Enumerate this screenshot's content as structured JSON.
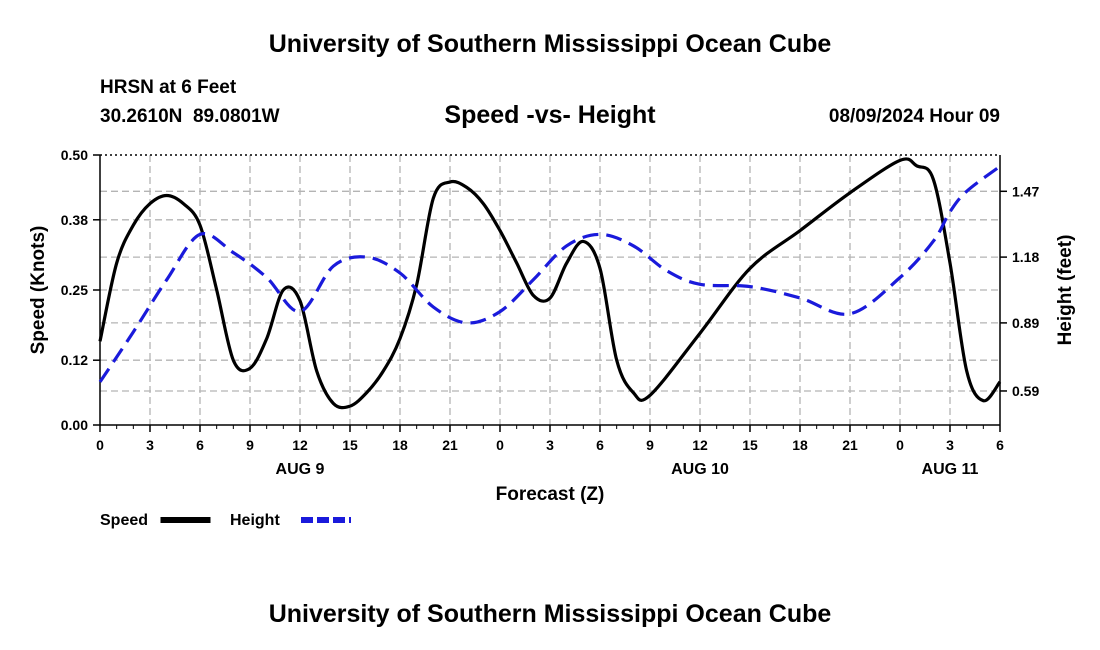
{
  "header": {
    "title": "University of Southern Mississippi Ocean Cube",
    "station": "HRSN at 6 Feet",
    "coords": "30.2610N  89.0801W",
    "timestamp": "08/09/2024 Hour 09"
  },
  "footer": {
    "title": "University of Southern Mississippi Ocean Cube"
  },
  "colors": {
    "speed": "#000000",
    "height": "#1a1adb",
    "grid": "#b4b4b4"
  },
  "chart_data": {
    "type": "line",
    "title": "Speed -vs- Height",
    "xlabel": "Forecast (Z)",
    "ylabel": "Speed (Knots)",
    "ylabel_right": "Height (feet)",
    "grid": true,
    "xlim": [
      0,
      54
    ],
    "ylim": [
      0,
      0.5
    ],
    "ylim_right": [
      0.44,
      1.63
    ],
    "x_ticks": [
      0,
      3,
      6,
      9,
      12,
      15,
      18,
      21,
      24,
      27,
      30,
      33,
      36,
      39,
      42,
      45,
      48,
      51,
      54
    ],
    "x_tick_labels": [
      "0",
      "3",
      "6",
      "9",
      "12",
      "15",
      "18",
      "21",
      "0",
      "3",
      "6",
      "9",
      "12",
      "15",
      "18",
      "21",
      "0",
      "3",
      "6"
    ],
    "day_labels": [
      {
        "x": 12,
        "label": "AUG 9"
      },
      {
        "x": 36,
        "label": "AUG 10"
      },
      {
        "x": 51,
        "label": "AUG 11"
      }
    ],
    "y_ticks": [
      0.0,
      0.12,
      0.25,
      0.38,
      0.5
    ],
    "y_tick_labels": [
      "0.00",
      "0.12",
      "0.25",
      "0.38",
      "0.50"
    ],
    "y_ticks_right": [
      0.59,
      0.89,
      1.18,
      1.47
    ],
    "y_tick_labels_right": [
      "0.59",
      "0.89",
      "1.18",
      "1.47"
    ],
    "series": [
      {
        "name": "Speed",
        "axis": "left",
        "style": "solid",
        "x": [
          0,
          1,
          2,
          3,
          4,
          5,
          6,
          7,
          8,
          9,
          10,
          11,
          12,
          13,
          14,
          15,
          16,
          17,
          18,
          19,
          20,
          21,
          22,
          23,
          24,
          25,
          26,
          27,
          28,
          29,
          30,
          31,
          32,
          33,
          36,
          39,
          42,
          45,
          48,
          49,
          50,
          51,
          52,
          53,
          54
        ],
        "values": [
          0.155,
          0.3,
          0.37,
          0.41,
          0.425,
          0.41,
          0.37,
          0.25,
          0.12,
          0.105,
          0.16,
          0.25,
          0.23,
          0.1,
          0.04,
          0.035,
          0.06,
          0.1,
          0.16,
          0.26,
          0.42,
          0.45,
          0.44,
          0.41,
          0.36,
          0.3,
          0.24,
          0.235,
          0.3,
          0.34,
          0.29,
          0.12,
          0.06,
          0.055,
          0.17,
          0.29,
          0.36,
          0.43,
          0.49,
          0.48,
          0.455,
          0.3,
          0.1,
          0.045,
          0.08
        ]
      },
      {
        "name": "Height",
        "axis": "right",
        "style": "dashed",
        "x": [
          0,
          2,
          4,
          6,
          8,
          10,
          12,
          14,
          16,
          18,
          20,
          22,
          24,
          26,
          28,
          30,
          32,
          34,
          36,
          39,
          42,
          45,
          48,
          50,
          51,
          52,
          54
        ],
        "values": [
          0.63,
          0.85,
          1.08,
          1.28,
          1.2,
          1.09,
          0.94,
          1.14,
          1.18,
          1.11,
          0.96,
          0.89,
          0.94,
          1.08,
          1.23,
          1.28,
          1.23,
          1.12,
          1.06,
          1.05,
          1.0,
          0.93,
          1.09,
          1.25,
          1.38,
          1.47,
          1.58
        ]
      }
    ],
    "legend": [
      {
        "label": "Speed",
        "style": "solid"
      },
      {
        "label": "Height",
        "style": "dashed"
      }
    ],
    "legend_position": "bottom-left"
  }
}
